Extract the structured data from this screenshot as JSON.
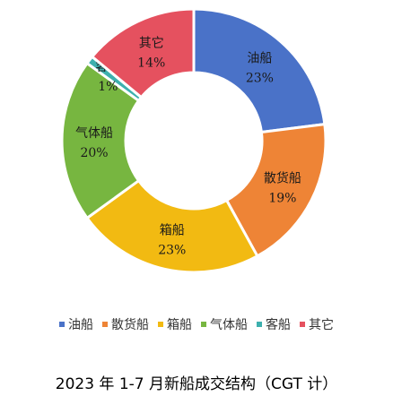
{
  "chart_data": {
    "type": "pie",
    "title": "2023 年 1-7 月新船成交结构（CGT 计）",
    "legend_position": "bottom",
    "hole": true,
    "slices": [
      {
        "label": "油船",
        "value": 23,
        "value_label": "23%",
        "color": "#4A72C8"
      },
      {
        "label": "散货船",
        "value": 19,
        "value_label": "19%",
        "color": "#EE8436"
      },
      {
        "label": "箱船",
        "value": 23,
        "value_label": "23%",
        "color": "#F2BA12"
      },
      {
        "label": "气体船",
        "value": 20,
        "value_label": "20%",
        "color": "#77B640"
      },
      {
        "label": "客船",
        "value": 1,
        "value_label": "1%",
        "color": "#3DB0AE"
      },
      {
        "label": "其它",
        "value": 14,
        "value_label": "14%",
        "color": "#E5515F"
      }
    ]
  }
}
